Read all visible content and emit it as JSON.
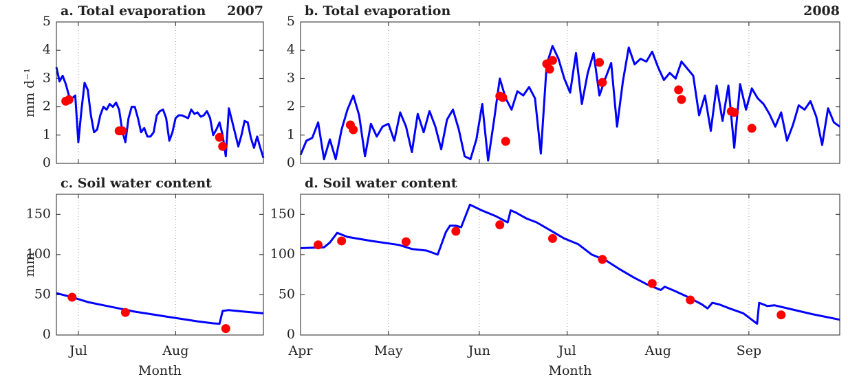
{
  "chart_data": [
    {
      "type": "line",
      "title": "a. Total evaporation",
      "annotation": "2007",
      "ylabel": "mm d⁻¹",
      "xlim": [
        175,
        241
      ],
      "xticks": [
        182,
        213
      ],
      "ylim": [
        0,
        5
      ],
      "yticks": [
        0,
        1,
        2,
        3,
        4,
        5
      ],
      "grid": "x",
      "series": [
        {
          "type": "line",
          "color": "#0000ff",
          "x": [
            175,
            176,
            177,
            178,
            179,
            180,
            181,
            182,
            183,
            184,
            185,
            186,
            187,
            188,
            189,
            190,
            191,
            192,
            193,
            194,
            195,
            196,
            197,
            198,
            199,
            200,
            201,
            202,
            203,
            204,
            205,
            206,
            207,
            208,
            209,
            210,
            211,
            212,
            213,
            214,
            215,
            216,
            217,
            218,
            219,
            220,
            221,
            222,
            223,
            224,
            225,
            226,
            227,
            228,
            229,
            230,
            231,
            232,
            233,
            234,
            235,
            236,
            237,
            238,
            239,
            240,
            241
          ],
          "values": [
            3.4,
            2.9,
            3.1,
            2.8,
            2.4,
            2.3,
            2.4,
            0.75,
            1.9,
            2.85,
            2.6,
            1.7,
            1.1,
            1.2,
            1.7,
            2.0,
            1.9,
            2.1,
            2.0,
            2.15,
            1.9,
            1.15,
            0.75,
            1.6,
            2.0,
            2.0,
            1.6,
            1.1,
            1.25,
            0.95,
            0.95,
            1.1,
            1.7,
            1.85,
            1.9,
            1.6,
            0.8,
            1.1,
            1.6,
            1.7,
            1.7,
            1.65,
            1.6,
            1.9,
            1.75,
            1.8,
            1.65,
            1.7,
            1.85,
            1.6,
            1.0,
            1.2,
            1.45,
            1.0,
            0.25,
            1.95,
            1.5,
            1.05,
            0.6,
            1.0,
            1.5,
            1.45,
            0.9,
            0.55,
            0.95,
            0.55,
            0.2
          ]
        },
        {
          "type": "scatter",
          "color": "#ff0000",
          "x": [
            178,
            179,
            195,
            196,
            227,
            228
          ],
          "values": [
            2.2,
            2.25,
            1.15,
            1.15,
            0.92,
            0.6
          ]
        }
      ]
    },
    {
      "type": "line",
      "title": "b. Total evaporation",
      "annotation": "2008",
      "xlim": [
        92,
        276
      ],
      "xticks": [
        122,
        153,
        183,
        214,
        245
      ],
      "ylim": [
        0,
        5
      ],
      "yticks": [
        0,
        1,
        2,
        3,
        4,
        5
      ],
      "grid": "x",
      "series": [
        {
          "type": "line",
          "color": "#0000ff",
          "x": [
            92,
            94,
            96,
            98,
            100,
            102,
            104,
            106,
            108,
            110,
            112,
            114,
            116,
            118,
            120,
            122,
            124,
            126,
            128,
            130,
            132,
            134,
            136,
            138,
            140,
            142,
            144,
            146,
            148,
            150,
            152,
            154,
            156,
            158,
            160,
            162,
            164,
            166,
            168,
            170,
            172,
            174,
            176,
            178,
            180,
            182,
            184,
            186,
            188,
            190,
            192,
            194,
            196,
            198,
            200,
            202,
            204,
            206,
            208,
            210,
            212,
            214,
            216,
            218,
            220,
            222,
            224,
            226,
            228,
            230,
            232,
            234,
            236,
            238,
            240,
            242,
            244,
            246,
            248,
            250,
            252,
            254,
            256,
            258,
            260,
            262,
            264,
            266,
            268,
            270,
            272,
            274,
            276
          ],
          "values": [
            0.3,
            0.8,
            0.9,
            1.45,
            0.15,
            0.85,
            0.15,
            1.2,
            1.9,
            2.4,
            1.7,
            0.25,
            1.4,
            0.95,
            1.3,
            1.4,
            0.8,
            1.8,
            1.3,
            0.4,
            1.75,
            1.1,
            1.85,
            1.3,
            0.5,
            1.55,
            1.9,
            1.2,
            0.25,
            0.15,
            0.85,
            2.1,
            0.1,
            1.5,
            3.0,
            2.3,
            1.9,
            2.55,
            2.4,
            2.7,
            2.3,
            0.35,
            3.5,
            4.15,
            3.7,
            3.0,
            2.5,
            3.9,
            2.1,
            3.2,
            3.9,
            2.4,
            3.0,
            3.55,
            1.3,
            2.9,
            4.1,
            3.5,
            3.7,
            3.6,
            3.95,
            3.4,
            2.95,
            3.2,
            3.0,
            3.6,
            3.35,
            3.1,
            1.7,
            2.4,
            1.15,
            2.75,
            1.5,
            2.75,
            0.55,
            2.8,
            1.9,
            2.65,
            2.3,
            2.1,
            1.75,
            1.3,
            1.8,
            0.8,
            1.35,
            2.05,
            1.9,
            2.2,
            1.65,
            0.65,
            1.95,
            1.45,
            1.3
          ]
        },
        {
          "type": "scatter",
          "color": "#ff0000",
          "x": [
            109,
            110,
            160,
            161,
            162,
            176,
            177,
            178,
            194,
            195,
            221,
            222,
            239,
            240,
            246
          ],
          "values": [
            1.36,
            1.19,
            2.38,
            2.33,
            0.78,
            3.52,
            3.33,
            3.64,
            3.57,
            2.86,
            2.6,
            2.26,
            1.84,
            1.8,
            1.24
          ]
        }
      ]
    },
    {
      "type": "line",
      "title": "c. Soil water content",
      "ylabel": "mm",
      "xlabel": "Month",
      "xlim": [
        175,
        241
      ],
      "xticks": [
        {
          "value": 182,
          "label": "Jul"
        },
        {
          "value": 213,
          "label": "Aug"
        }
      ],
      "ylim": [
        0,
        175
      ],
      "yticks": [
        0,
        50,
        100,
        150
      ],
      "grid": "x",
      "series": [
        {
          "type": "line",
          "color": "#0000ff",
          "x": [
            175,
            180,
            185,
            190,
            195,
            200,
            205,
            210,
            215,
            220,
            225,
            227,
            228,
            230,
            235,
            241
          ],
          "values": [
            52,
            47,
            41,
            37,
            33,
            29,
            26,
            23,
            20,
            17,
            14.5,
            14,
            30,
            31,
            29,
            27
          ]
        },
        {
          "type": "scatter",
          "color": "#ff0000",
          "x": [
            180,
            197,
            229
          ],
          "values": [
            47,
            28,
            8
          ]
        }
      ]
    },
    {
      "type": "line",
      "title": "d. Soil water content",
      "xlabel": "Month",
      "xlim": [
        92,
        276
      ],
      "xticks": [
        {
          "value": 92,
          "label": "Apr"
        },
        {
          "value": 122,
          "label": "May"
        },
        {
          "value": 153,
          "label": "Jun"
        },
        {
          "value": 183,
          "label": "Jul"
        },
        {
          "value": 214,
          "label": "Aug"
        },
        {
          "value": 245,
          "label": "Sep"
        }
      ],
      "ylim": [
        0,
        175
      ],
      "yticks": [
        0,
        50,
        100,
        150
      ],
      "grid": "x",
      "series": [
        {
          "type": "line",
          "color": "#0000ff",
          "x": [
            92,
            100,
            102,
            104.5,
            108,
            116,
            125.6,
            130,
            135,
            138.8,
            141.6,
            143,
            144.9,
            146.8,
            149.8,
            153.8,
            158.5,
            162.7,
            163.7,
            165.6,
            169,
            172.6,
            177.3,
            182,
            186.7,
            191.4,
            196.1,
            200.8,
            205.5,
            210.2,
            214.9,
            216.3,
            219.6,
            224.3,
            229,
            230.9,
            232.5,
            234.9,
            238.4,
            243.1,
            247.8,
            248.5,
            251.3,
            253.7,
            259.5,
            266.5,
            276
          ],
          "values": [
            108,
            109,
            115,
            127,
            122,
            117,
            112,
            107,
            105,
            100,
            128,
            136,
            136,
            134,
            162,
            155,
            148,
            140,
            155,
            152,
            145,
            140,
            130,
            120,
            113,
            100,
            93,
            82,
            72,
            63,
            56,
            60,
            55,
            47,
            38,
            33,
            40,
            38,
            33,
            27,
            14,
            40,
            36,
            37,
            32,
            26,
            19
          ]
        },
        {
          "type": "scatter",
          "color": "#ff0000",
          "x": [
            98,
            106,
            128,
            145,
            160,
            178,
            195,
            212,
            225,
            256
          ],
          "values": [
            112,
            117,
            116,
            129,
            137,
            120,
            94,
            64,
            43.5,
            25
          ]
        }
      ]
    }
  ]
}
